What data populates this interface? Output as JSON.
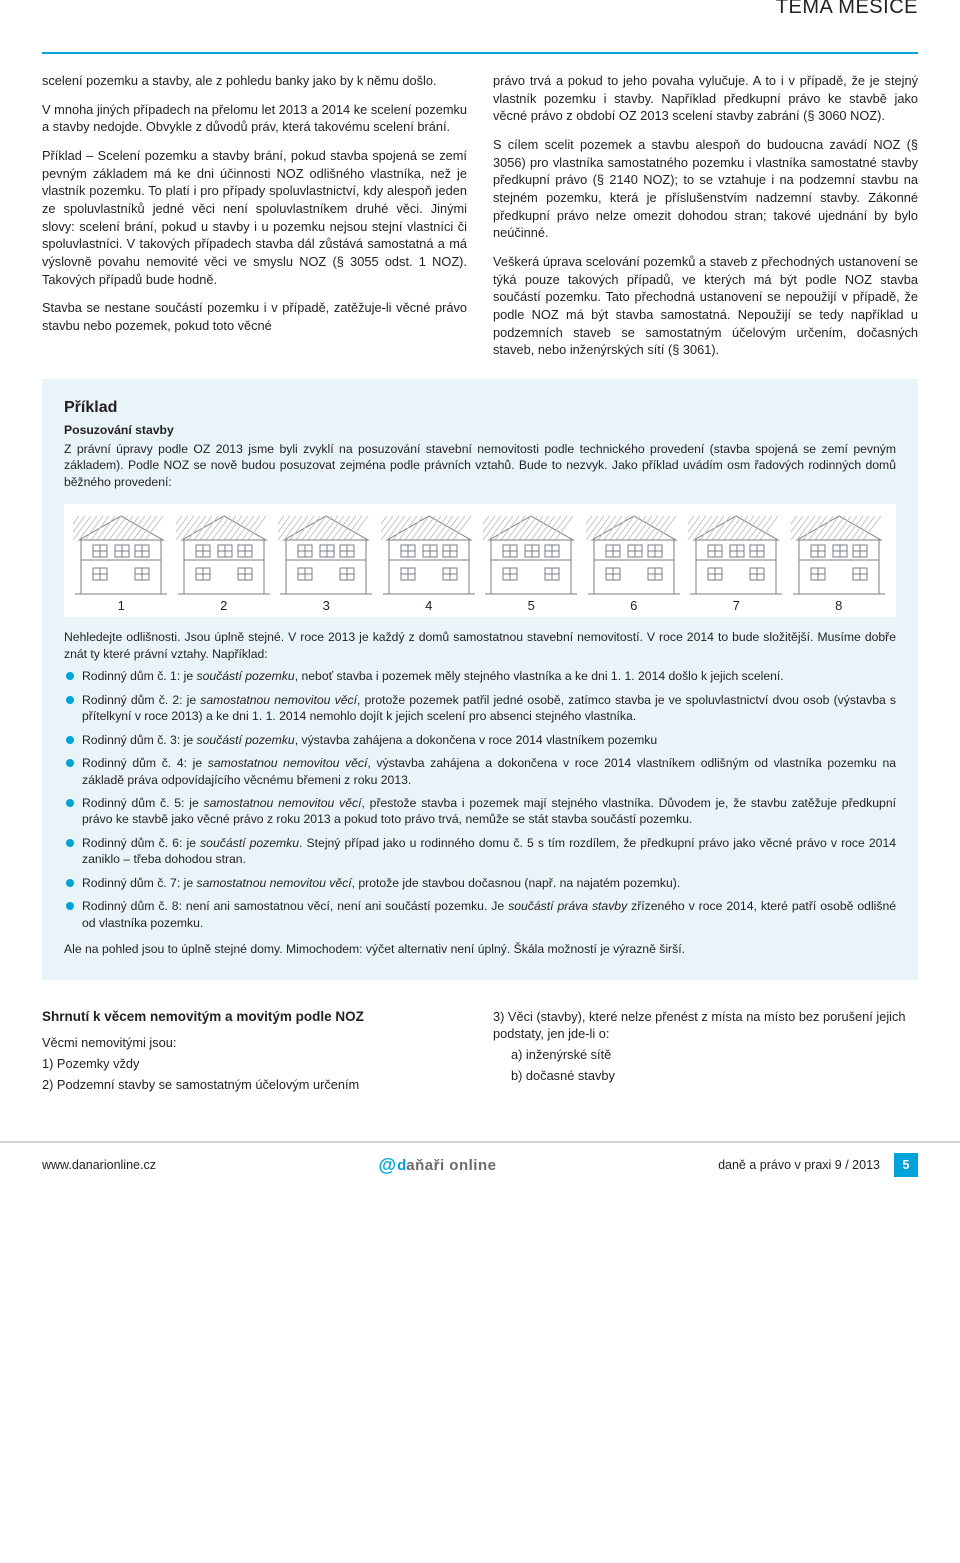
{
  "header": {
    "section_tag": "TÉMA MĚSÍCE"
  },
  "body": {
    "p1": "scelení pozemku a stavby, ale z pohledu banky jako by k němu došlo.",
    "p2": "V mnoha jiných případech na přelomu let 2013 a 2014 ke scelení pozemku a stavby nedojde. Obvykle z důvodů práv, která takovému scelení brání.",
    "p3": "Příklad – Scelení pozemku a stavby brání, pokud stavba spojená se zemí pevným základem má ke dni účinnosti NOZ odlišného vlastníka, než je vlastník pozemku. To platí i pro případy spoluvlastnictví, kdy alespoň jeden ze spoluvlastníků jedné věci není spoluvlastníkem druhé věci. Jinými slovy: scelení brání, pokud u stavby i u pozemku nejsou stejní vlastníci či spoluvlastníci. V takových případech stavba dál zůstává samostatná a má výslovně povahu nemovité věci ve smyslu NOZ (§ 3055 odst. 1 NOZ). Takových případů bude hodně.",
    "p4": "Stavba se nestane součástí pozemku i v případě, zatěžuje-li věcné právo stavbu nebo pozemek, pokud toto věcné",
    "p5": "právo trvá a pokud to jeho povaha vylučuje. A to i v případě, že je stejný vlastník pozemku i stavby. Například předkupní právo ke stavbě jako věcné právo z období OZ 2013 scelení stavby zabrání (§ 3060 NOZ).",
    "p6": "S cílem scelit pozemek a stavbu alespoň do budoucna zavádí NOZ (§ 3056) pro vlastníka samostatného pozemku i vlastníka samostatné stavby předkupní právo (§ 2140 NOZ); to se vztahuje i na podzemní stavbu na stejném pozemku, která je příslušenstvím nadzemní stavby. Zákonné předkupní právo nelze omezit dohodou stran; takové ujednání by bylo neúčinné.",
    "p7": "Veškerá úprava scelování pozemků a staveb z přechodných ustanovení se týká pouze takových případů, ve kterých má být podle NOZ stavba součástí pozemku. Tato přechodná ustanovení se nepoužijí v případě, že podle NOZ má být stavba samostatná. Nepoužijí se tedy například u podzemních staveb se samostatným účelovým určením, dočasných staveb, nebo inženýrských sítí (§ 3061)."
  },
  "example": {
    "title": "Příklad",
    "subtitle": "Posuzování stavby",
    "lead": "Z právní úpravy podle OZ 2013 jsme byli zvyklí na posuzování stavební nemovitosti podle technického provedení (stavba spojená se zemí pevným základem). Podle NOZ se nově budou posuzovat zejména podle právních vztahů. Bude to nezvyk. Jako příklad uvádím osm řadových rodinných domů běžného provedení:",
    "house_numbers": [
      "1",
      "2",
      "3",
      "4",
      "5",
      "6",
      "7",
      "8"
    ],
    "after_houses_p1": "Nehledejte odlišnosti. Jsou úplně stejné. V roce 2013 je každý z domů samostatnou stavební nemovitostí. V roce 2014 to bude složitější. Musíme dobře znát ty které právní vztahy. Například:",
    "items": [
      "Rodinný dům č. 1: je <em>součástí pozemku</em>, neboť stavba i pozemek měly stejného vlastníka a ke dni 1. 1. 2014 došlo k jejich scelení.",
      "Rodinný dům č. 2: je <em>samostatnou nemovitou věcí</em>, protože pozemek patřil jedné osobě, zatímco stavba je ve spoluvlastnictví dvou osob (výstavba s přítelkyní v roce 2013) a ke dni 1. 1. 2014 nemohlo dojít k jejich scelení pro absenci stejného vlastníka.",
      "Rodinný dům č. 3: je <em>součástí pozemku</em>, výstavba zahájena a dokončena v roce 2014 vlastníkem pozemku",
      "Rodinný dům č. 4: je <em>samostatnou nemovitou věcí</em>, výstavba zahájena a dokončena v roce 2014 vlastníkem odlišným od vlastníka pozemku na základě práva odpovídajícího věcnému břemeni z roku 2013.",
      "Rodinný dům č. 5: je <em>samostatnou nemovitou věcí</em>, přestože stavba i pozemek mají stejného vlastníka. Důvodem je, že stavbu zatěžuje předkupní právo ke stavbě jako věcné právo z roku 2013 a pokud toto právo trvá, nemůže se stát stavba součástí pozemku.",
      "Rodinný dům č. 6: je <em>součástí pozemku</em>. Stejný případ jako u rodinného domu č. 5 s tím rozdílem, že předkupní právo jako věcné právo v roce 2014 zaniklo – třeba dohodou stran.",
      "Rodinný dům č. 7: je <em>samostatnou nemovitou věcí</em>, protože jde stavbou dočasnou (např. na najatém pozemku).",
      "Rodinný dům č. 8: není ani samostatnou věcí, není ani součástí pozemku. Je <em>součástí práva stavby</em> zřízeného v roce 2014, které patří osobě odlišné od vlastníka pozemku."
    ],
    "closing": "Ale na pohled jsou to úplně stejné domy. Mimochodem: výčet alternativ není úplný. Škála možností je výrazně širší."
  },
  "summary": {
    "heading": "Shrnutí k věcem nemovitým a movitým podle NOZ",
    "intro": "Věcmi nemovitými jsou:",
    "l1": "1) Pozemky vždy",
    "l2": "2) Podzemní stavby se samostatným účelovým určením",
    "r3": "3) Věci (stavby), které nelze přenést z místa na místo bez porušení jejich podstaty, jen jde-li o:",
    "r3a": "a) inženýrské sítě",
    "r3b": "b) dočasné stavby"
  },
  "footer": {
    "url": "www.danarionline.cz",
    "logo_d": "d",
    "logo_rest": "aňaři online",
    "right_text": "daně a právo v praxi 9 / 2013",
    "page": "5"
  },
  "house_svg": {
    "stroke": "#7a7f84",
    "hatch": "#bfc3c7",
    "width": 96,
    "height": 84
  }
}
